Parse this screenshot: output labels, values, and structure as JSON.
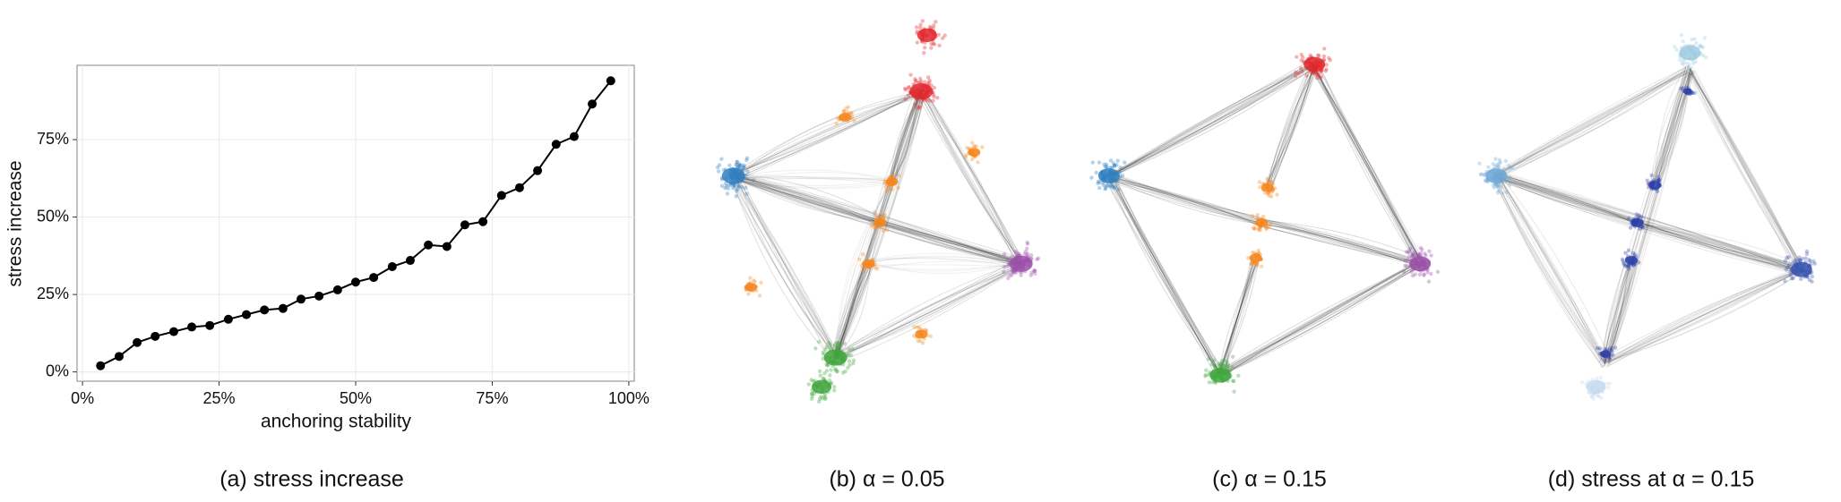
{
  "chart_data": {
    "type": "line",
    "x_label": "anchoring stability",
    "y_label": "stress increase",
    "x": [
      3.3,
      6.7,
      10,
      13.3,
      16.7,
      20,
      23.3,
      26.7,
      30,
      33.3,
      36.7,
      40,
      43.3,
      46.7,
      50,
      53.3,
      56.7,
      60,
      63.3,
      66.7,
      70,
      73.3,
      76.7,
      80,
      83.3,
      86.7,
      90,
      93.3,
      96.7
    ],
    "series": [
      {
        "color": "#000000",
        "values": [
          2,
          5,
          9.5,
          11.5,
          13,
          14.5,
          15,
          17,
          18.5,
          20,
          20.5,
          23.5,
          24.5,
          26.5,
          29,
          30.5,
          34,
          36,
          41,
          40.5,
          47.5,
          48.5,
          57,
          59.5,
          65,
          73.5,
          76,
          86.5,
          94
        ]
      }
    ],
    "xlim": [
      -1,
      101
    ],
    "ylim": [
      -3,
      99
    ],
    "xticks": [
      {
        "value": 0,
        "label": "0%"
      },
      {
        "value": 25,
        "label": "25%"
      },
      {
        "value": 50,
        "label": "50%"
      },
      {
        "value": 75,
        "label": "75%"
      },
      {
        "value": 100,
        "label": "100%"
      }
    ],
    "yticks": [
      {
        "value": 0,
        "label": "0%"
      },
      {
        "value": 25,
        "label": "25%"
      },
      {
        "value": 50,
        "label": "50%"
      },
      {
        "value": 75,
        "label": "75%"
      }
    ],
    "grid": true
  },
  "captions": [
    "(a) stress increase",
    "(b) α = 0.05",
    "(c) α = 0.15",
    "(d) stress at α = 0.15"
  ]
}
